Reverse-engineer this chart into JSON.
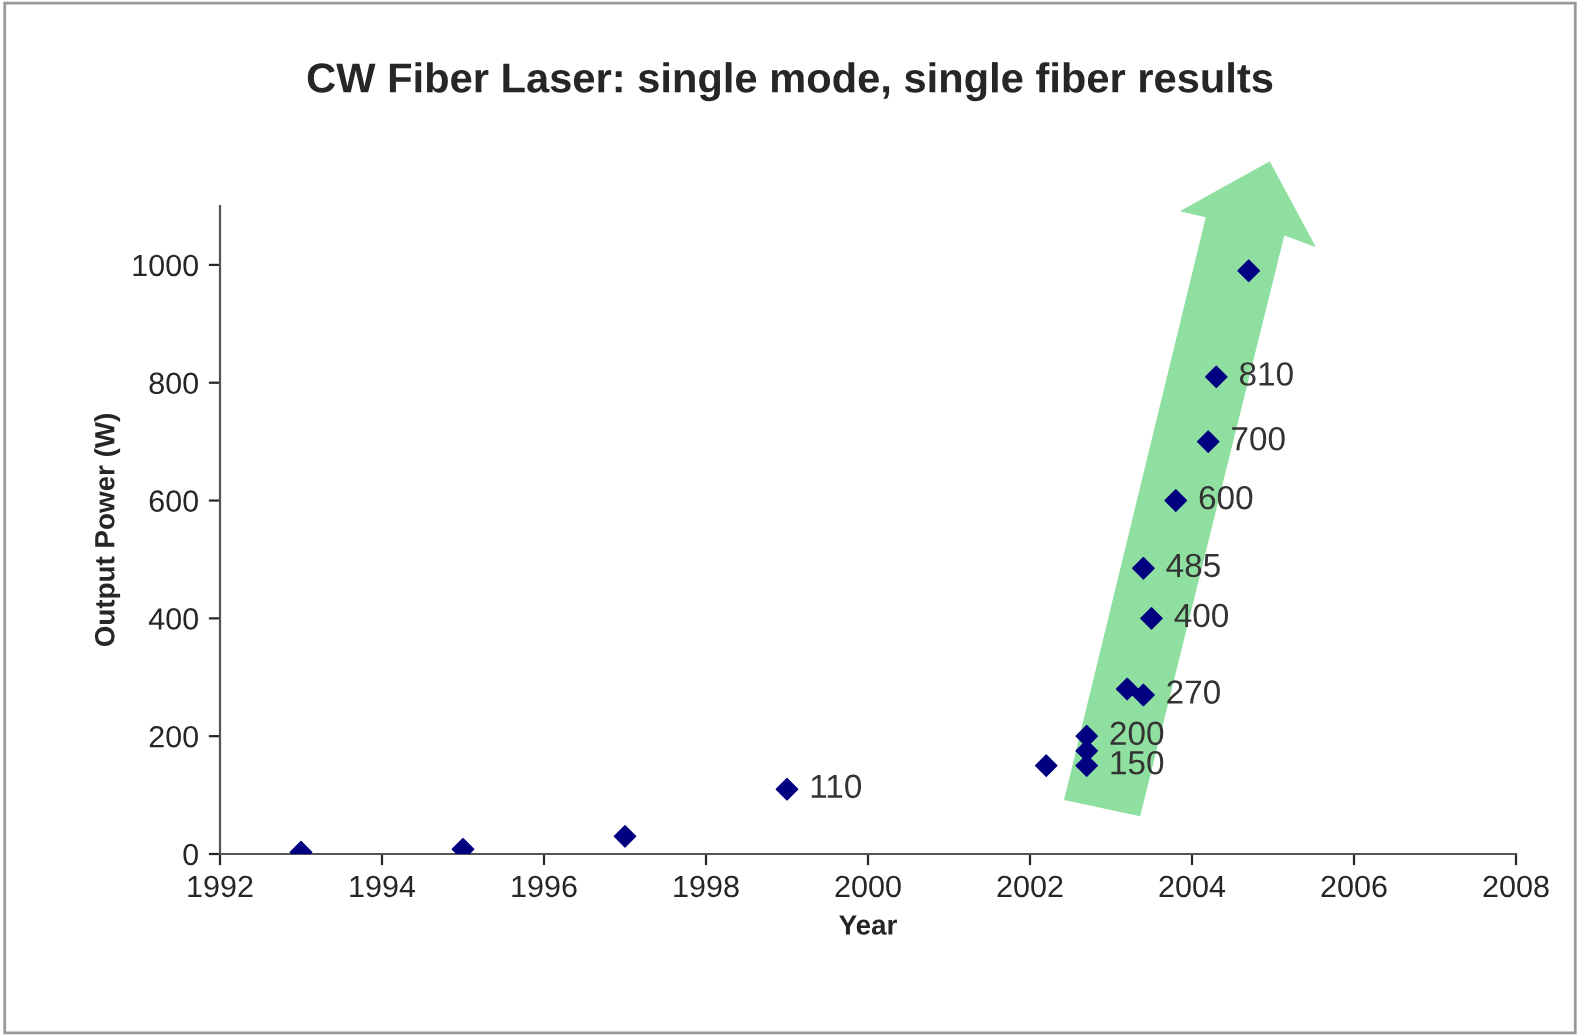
{
  "chart_data": {
    "type": "scatter",
    "title": "CW Fiber Laser: single mode, single fiber results",
    "xlabel": "Year",
    "ylabel": "Output Power (W)",
    "x": [
      1993,
      1995,
      1997,
      1999,
      2002.2,
      2002.7,
      2002.7,
      2002.7,
      2003.2,
      2003.4,
      2003.5,
      2003.4,
      2003.8,
      2004.2,
      2004.3,
      2004.7
    ],
    "series": [
      {
        "color": "#000080",
        "values": [
          3,
          8,
          30,
          110,
          150,
          150,
          175,
          200,
          280,
          270,
          400,
          485,
          600,
          700,
          810,
          990
        ],
        "value_labels": [
          null,
          null,
          null,
          "110",
          null,
          "150",
          null,
          "200",
          null,
          "270",
          "400",
          "485",
          "600",
          "700",
          "810",
          null
        ]
      }
    ],
    "xlim": [
      1992,
      2008
    ],
    "xticks": [
      1992,
      1994,
      1996,
      1998,
      2000,
      2002,
      2004,
      2006,
      2008
    ],
    "ylim": [
      0,
      1100
    ],
    "yticks": [
      0,
      200,
      400,
      600,
      800,
      1000
    ],
    "grid": false,
    "marker": "diamond"
  }
}
